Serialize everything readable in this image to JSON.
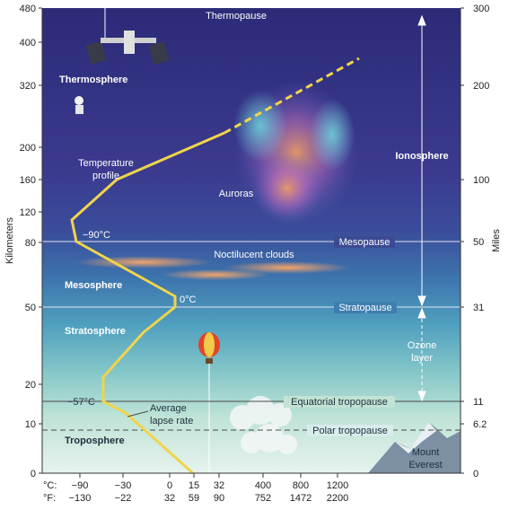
{
  "axes": {
    "left_label": "Kilometers",
    "right_label": "Miles",
    "km_ticks": [
      "480",
      "400",
      "320",
      "200",
      "160",
      "120",
      "80",
      "50",
      "20",
      "10",
      "0"
    ],
    "mile_ticks": [
      "300",
      "200",
      "100",
      "50",
      "31",
      "11",
      "6.2",
      "0"
    ],
    "celsius_prefix": "°C:",
    "fahrenheit_prefix": "°F:",
    "celsius_ticks": [
      "−90",
      "−30",
      "0",
      "15",
      "32",
      "400",
      "800",
      "1200"
    ],
    "fahrenheit_ticks": [
      "−130",
      "−22",
      "32",
      "59",
      "90",
      "752",
      "1472",
      "2200"
    ]
  },
  "layers": {
    "thermosphere": "Thermosphere",
    "mesosphere": "Mesosphere",
    "stratosphere": "Stratosphere",
    "troposphere": "Troposphere",
    "ionosphere": "Ionosphere",
    "ozone_line1": "Ozone",
    "ozone_line2": "layer"
  },
  "boundaries": {
    "thermopause": "Thermopause",
    "mesopause": "Mesopause",
    "stratopause": "Stratopause",
    "equatorial_tropopause": "Equatorial tropopause",
    "polar_tropopause": "Polar tropopause"
  },
  "labels": {
    "temp_profile_line1": "Temperature",
    "temp_profile_line2": "profile",
    "auroras": "Auroras",
    "noctilucent": "Noctilucent clouds",
    "lapse_line1": "Average",
    "lapse_line2": "lapse rate",
    "everest_line1": "Mount",
    "everest_line2": "Everest",
    "t_minus90": "−90°C",
    "t_zero": "0°C",
    "t_minus57": "−57°C"
  },
  "colors": {
    "profile": "#f0d44a",
    "sky_top": "#2a2a7a",
    "sky_bottom": "#d8ecf5"
  }
}
